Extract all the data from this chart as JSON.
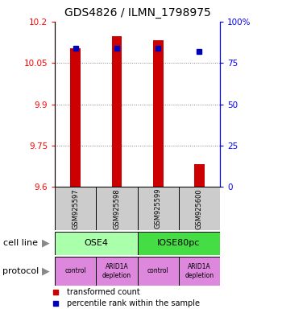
{
  "title": "GDS4826 / ILMN_1798975",
  "samples": [
    "GSM925597",
    "GSM925598",
    "GSM925599",
    "GSM925600"
  ],
  "red_bar_values": [
    10.104,
    10.148,
    10.133,
    9.682
  ],
  "blue_square_values": [
    84,
    84,
    84,
    82
  ],
  "y_min": 9.6,
  "y_max": 10.2,
  "y_ticks": [
    9.6,
    9.75,
    9.9,
    10.05,
    10.2
  ],
  "y2_ticks": [
    0,
    25,
    50,
    75,
    100
  ],
  "y2_labels": [
    "0",
    "25",
    "50",
    "75",
    "100%"
  ],
  "bar_color": "#cc0000",
  "square_color": "#0000bb",
  "bar_width": 0.25,
  "cell_line_color_ose4": "#aaffaa",
  "cell_line_color_iose": "#44dd44",
  "protocol_color": "#dd88dd",
  "sample_box_color": "#cccccc",
  "legend_red_label": "transformed count",
  "legend_blue_label": "percentile rank within the sample",
  "cell_line_text": "cell line",
  "protocol_text": "protocol",
  "title_fontsize": 10,
  "tick_fontsize": 7.5,
  "sample_fontsize": 6,
  "label_fontsize": 8,
  "legend_fontsize": 7
}
